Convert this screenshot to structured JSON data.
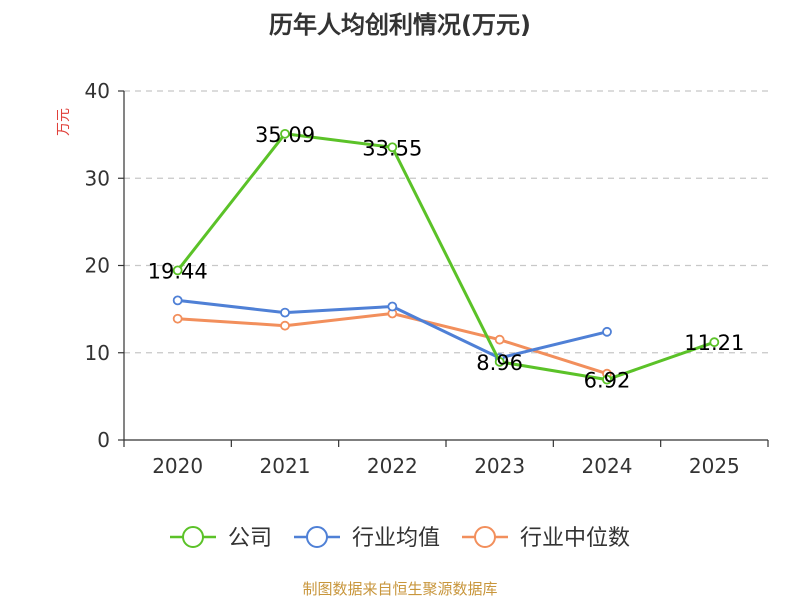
{
  "chart_data": {
    "type": "line",
    "title": "历年人均创利情况(万元)",
    "ylabel": "万元",
    "xlabel": "",
    "categories": [
      "2020",
      "2021",
      "2022",
      "2023",
      "2024",
      "2025"
    ],
    "ylim": [
      0,
      40
    ],
    "yticks": [
      0,
      10,
      20,
      30,
      40
    ],
    "grid": true,
    "legend_position": "bottom",
    "series": [
      {
        "name": "公司",
        "color": "#5bc228",
        "values": [
          19.44,
          35.09,
          33.55,
          8.96,
          6.92,
          11.21
        ],
        "labels": [
          "19.44",
          "35.09",
          "33.55",
          "8.96",
          "6.92",
          "11.21"
        ]
      },
      {
        "name": "行业均值",
        "color": "#4f80d6",
        "values": [
          16.0,
          14.6,
          15.3,
          9.4,
          12.4,
          null
        ],
        "labels": []
      },
      {
        "name": "行业中位数",
        "color": "#f28f5c",
        "values": [
          13.9,
          13.1,
          14.5,
          11.5,
          7.6,
          null
        ],
        "labels": []
      }
    ]
  },
  "source_note": "制图数据来自恒生聚源数据库"
}
